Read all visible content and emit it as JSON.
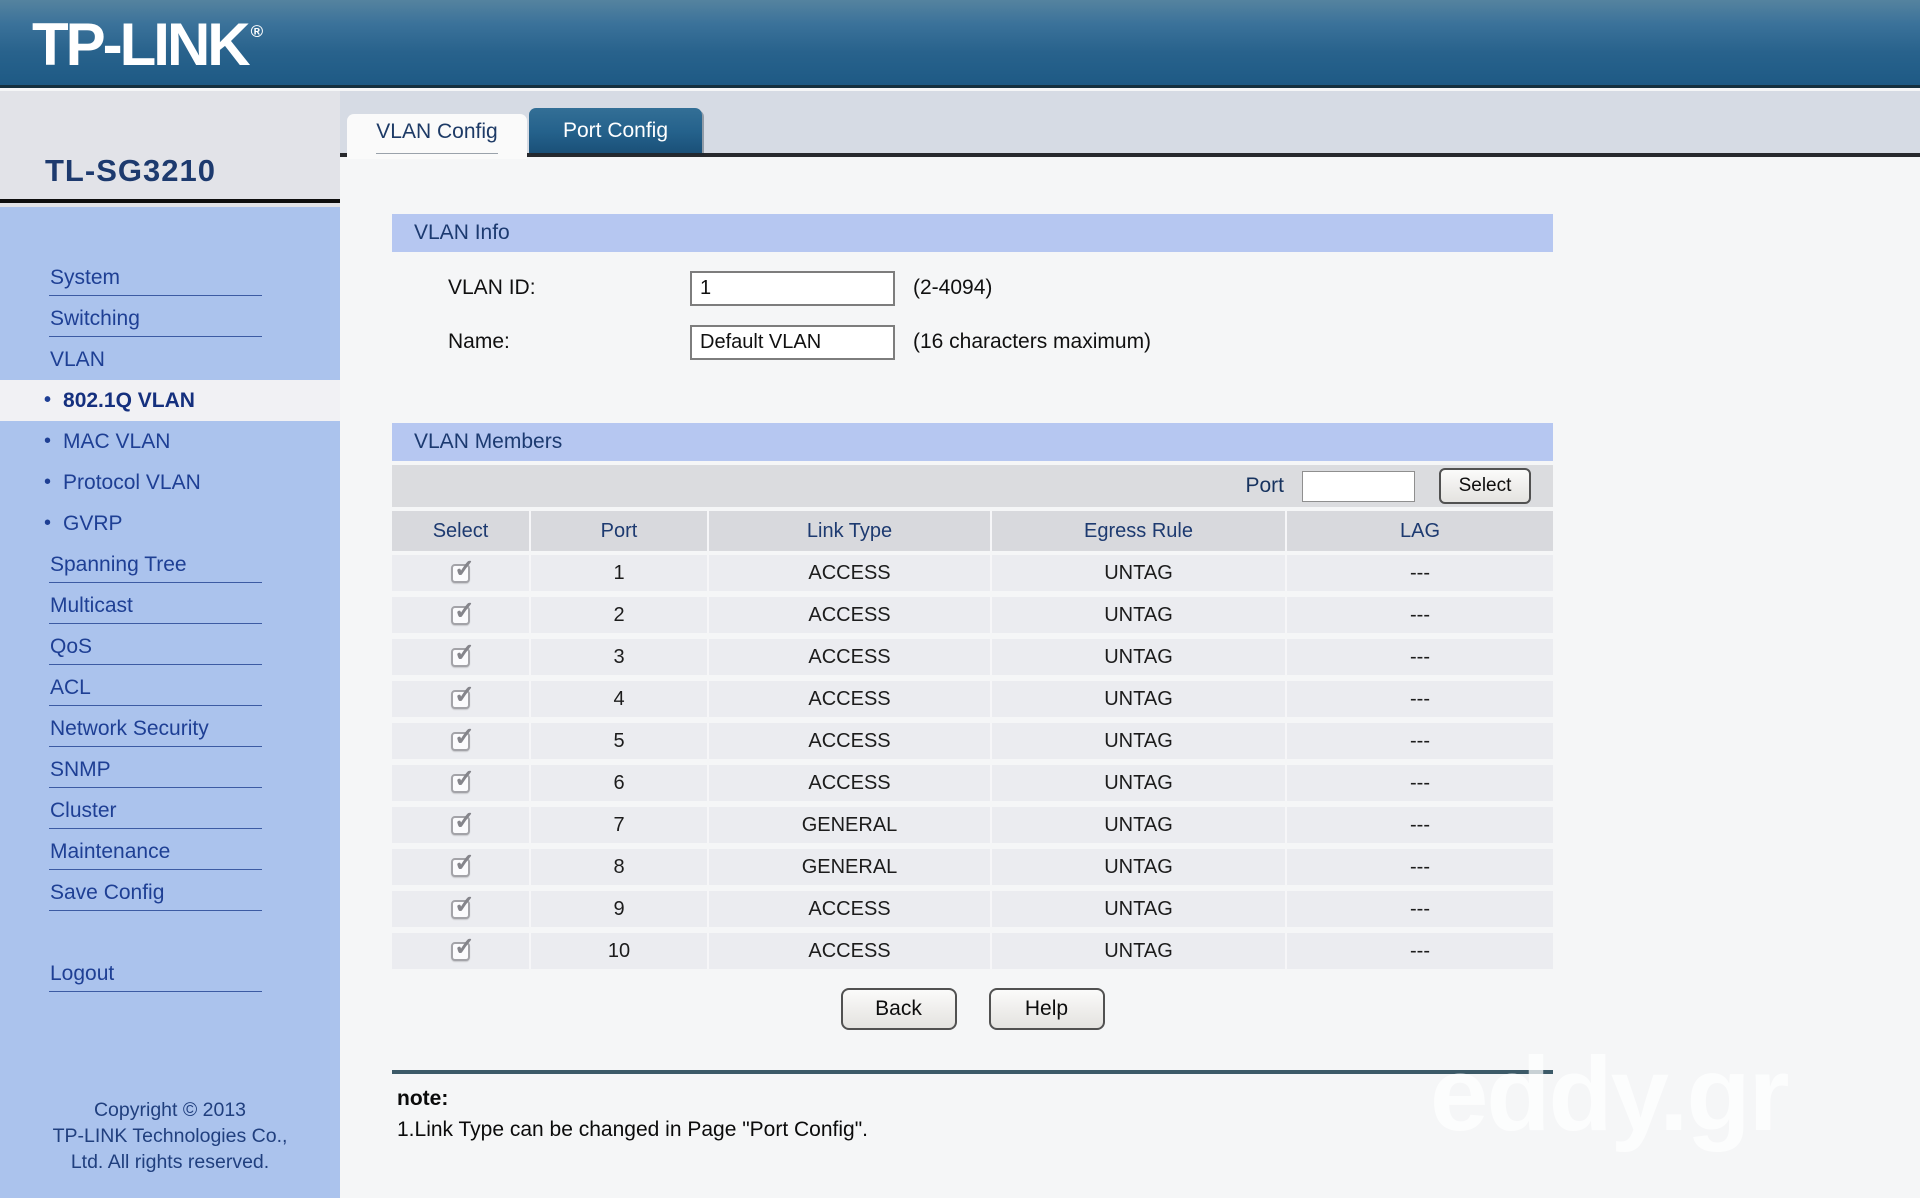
{
  "header": {
    "logo": "TP-LINK",
    "reg_mark": "®"
  },
  "sidebar": {
    "device": "TL-SG3210",
    "items": [
      {
        "label": "System",
        "type": "top",
        "divider": true
      },
      {
        "label": "Switching",
        "type": "top",
        "divider": true
      },
      {
        "label": "VLAN",
        "type": "top",
        "divider": false
      },
      {
        "label": "802.1Q VLAN",
        "type": "sub",
        "active": true
      },
      {
        "label": "MAC VLAN",
        "type": "sub"
      },
      {
        "label": "Protocol VLAN",
        "type": "sub"
      },
      {
        "label": "GVRP",
        "type": "sub"
      },
      {
        "label": "Spanning Tree",
        "type": "top",
        "divider": true
      },
      {
        "label": "Multicast",
        "type": "top",
        "divider": true
      },
      {
        "label": "QoS",
        "type": "top",
        "divider": true
      },
      {
        "label": "ACL",
        "type": "top",
        "divider": true
      },
      {
        "label": "Network Security",
        "type": "top",
        "divider": true
      },
      {
        "label": "SNMP",
        "type": "top",
        "divider": true
      },
      {
        "label": "Cluster",
        "type": "top",
        "divider": true
      },
      {
        "label": "Maintenance",
        "type": "top",
        "divider": true
      },
      {
        "label": "Save Config",
        "type": "top",
        "divider": true
      },
      {
        "label": "Logout",
        "type": "top",
        "divider": true,
        "gap_before": true
      }
    ],
    "copyright_lines": [
      "Copyright © 2013",
      "TP-LINK Technologies Co.,",
      "Ltd. All rights reserved."
    ]
  },
  "tabs": [
    {
      "label": "VLAN Config",
      "active": true
    },
    {
      "label": "Port Config",
      "active": false
    }
  ],
  "vlan_info": {
    "title": "VLAN Info",
    "vlan_id_label": "VLAN ID:",
    "vlan_id_value": "1",
    "vlan_id_hint": "(2-4094)",
    "name_label": "Name:",
    "name_value": "Default VLAN",
    "name_hint": "(16 characters maximum)"
  },
  "vlan_members": {
    "title": "VLAN Members",
    "port_filter_label": "Port",
    "port_filter_value": "",
    "select_button_label": "Select",
    "columns": [
      "Select",
      "Port",
      "Link Type",
      "Egress Rule",
      "LAG"
    ],
    "rows": [
      {
        "checked": true,
        "port": "1",
        "link_type": "ACCESS",
        "egress_rule": "UNTAG",
        "lag": "---"
      },
      {
        "checked": true,
        "port": "2",
        "link_type": "ACCESS",
        "egress_rule": "UNTAG",
        "lag": "---"
      },
      {
        "checked": true,
        "port": "3",
        "link_type": "ACCESS",
        "egress_rule": "UNTAG",
        "lag": "---"
      },
      {
        "checked": true,
        "port": "4",
        "link_type": "ACCESS",
        "egress_rule": "UNTAG",
        "lag": "---"
      },
      {
        "checked": true,
        "port": "5",
        "link_type": "ACCESS",
        "egress_rule": "UNTAG",
        "lag": "---"
      },
      {
        "checked": true,
        "port": "6",
        "link_type": "ACCESS",
        "egress_rule": "UNTAG",
        "lag": "---"
      },
      {
        "checked": true,
        "port": "7",
        "link_type": "GENERAL",
        "egress_rule": "UNTAG",
        "lag": "---"
      },
      {
        "checked": true,
        "port": "8",
        "link_type": "GENERAL",
        "egress_rule": "UNTAG",
        "lag": "---"
      },
      {
        "checked": true,
        "port": "9",
        "link_type": "ACCESS",
        "egress_rule": "UNTAG",
        "lag": "---"
      },
      {
        "checked": true,
        "port": "10",
        "link_type": "ACCESS",
        "egress_rule": "UNTAG",
        "lag": "---"
      }
    ]
  },
  "actions": {
    "back_label": "Back",
    "help_label": "Help"
  },
  "note": {
    "heading": "note:",
    "line1": "1.Link Type can be changed in Page \"Port Config\"."
  },
  "watermark": "eddy.gr",
  "colors": {
    "header_blue": "#28628c",
    "sidebar_blue": "#abc3ed",
    "section_bar_blue": "#b6c7f1",
    "tab_active_bg": "#fafafa",
    "tab_inactive_blue": "#24618b",
    "nav_text_navy": "#1e3f94",
    "note_rule_teal": "#3c5a68"
  }
}
